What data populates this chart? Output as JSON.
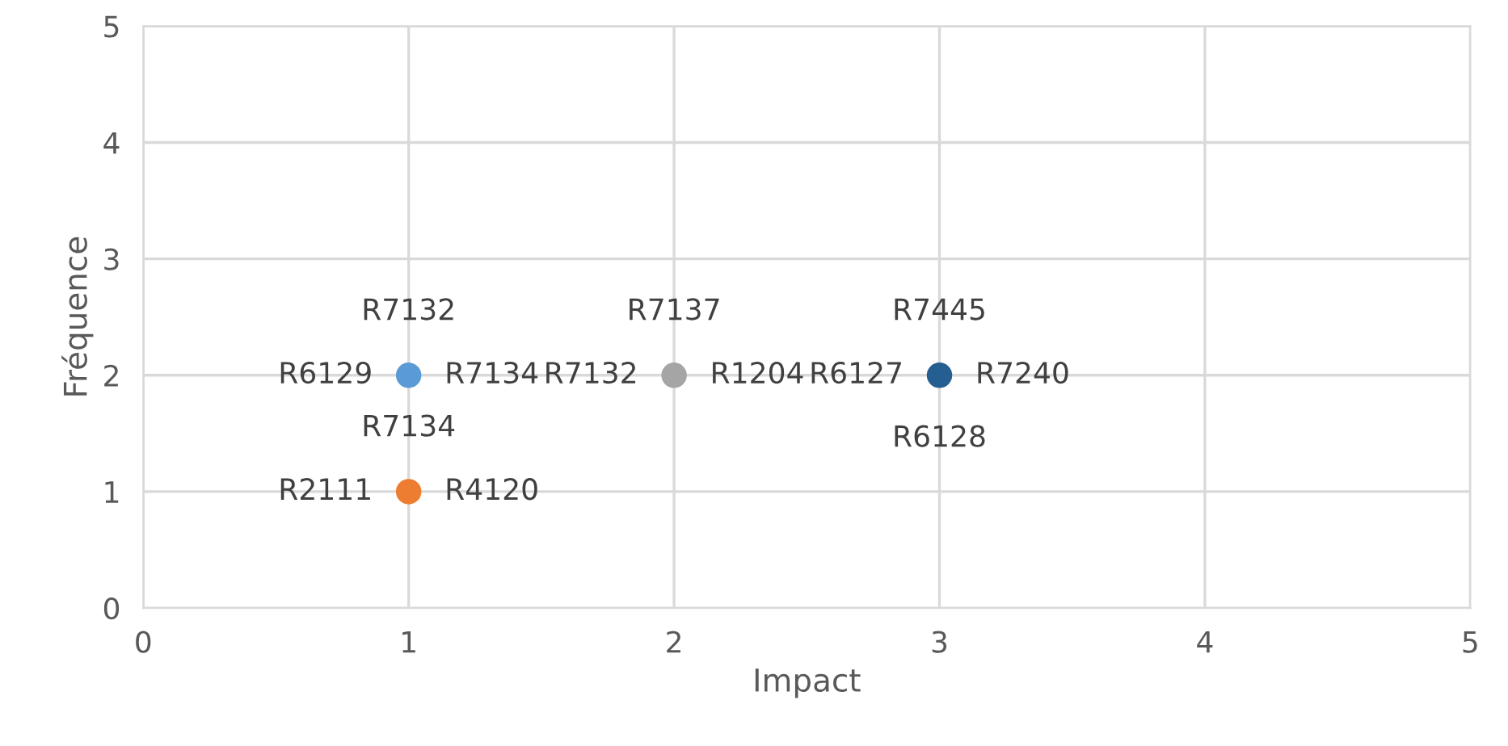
{
  "chart_data": {
    "type": "scatter",
    "xlabel": "Impact",
    "ylabel": "Fréquence",
    "xlim": [
      0,
      5
    ],
    "ylim": [
      0,
      5
    ],
    "xticks": [
      0,
      1,
      2,
      3,
      4,
      5
    ],
    "yticks": [
      0,
      1,
      2,
      3,
      4,
      5
    ],
    "grid": true,
    "marker": "circle",
    "series": [
      {
        "color": "#5b9bd5",
        "x": [
          1
        ],
        "values": [
          2
        ]
      },
      {
        "color": "#ed7d31",
        "x": [
          1
        ],
        "values": [
          1
        ]
      },
      {
        "color": "#a5a5a5",
        "x": [
          2
        ],
        "values": [
          2
        ]
      },
      {
        "color": "#255e91",
        "x": [
          3
        ],
        "values": [
          2
        ]
      }
    ],
    "annotations": [
      {
        "text": "R7132",
        "x": 1,
        "y": 2
      },
      {
        "text": "R6129",
        "x": 1,
        "y": 2
      },
      {
        "text": "R7134",
        "x": 1,
        "y": 2
      },
      {
        "text": "R7134",
        "x": 1,
        "y": 1
      },
      {
        "text": "R2111",
        "x": 1,
        "y": 1
      },
      {
        "text": "R4120",
        "x": 1,
        "y": 1
      },
      {
        "text": "R7137",
        "x": 2,
        "y": 2
      },
      {
        "text": "R7132",
        "x": 2,
        "y": 2
      },
      {
        "text": "R1204",
        "x": 2,
        "y": 2
      },
      {
        "text": "R7445",
        "x": 3,
        "y": 2
      },
      {
        "text": "R6127",
        "x": 3,
        "y": 2
      },
      {
        "text": "R7240",
        "x": 3,
        "y": 2
      },
      {
        "text": "R6128",
        "x": 3,
        "y": 2
      }
    ]
  }
}
